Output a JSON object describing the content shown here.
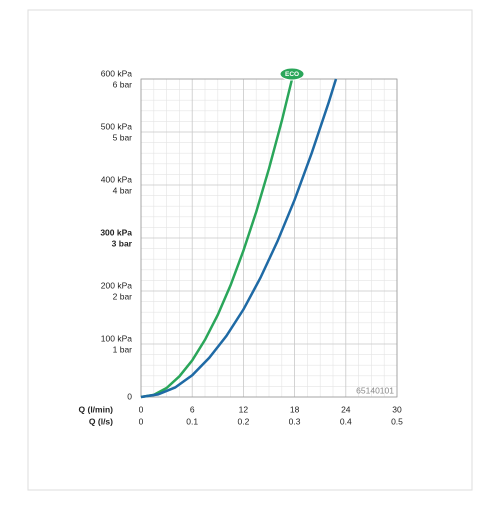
{
  "chart_data": {
    "type": "line",
    "xlabel": "Q (l/min)",
    "x2label": "Q (l/s)",
    "xlim": [
      0,
      30
    ],
    "xticks": [
      0,
      6,
      12,
      18,
      24,
      30
    ],
    "x2ticks": [
      {
        "value": 0,
        "label": "0"
      },
      {
        "value": 6,
        "label": "0.1"
      },
      {
        "value": 12,
        "label": "0.2"
      },
      {
        "value": 18,
        "label": "0.3"
      },
      {
        "value": 24,
        "label": "0.4"
      },
      {
        "value": 30,
        "label": "0.5"
      }
    ],
    "ylim": [
      0,
      600
    ],
    "yticks": [
      0,
      {
        "value": 100,
        "label": "100 kPa"
      },
      {
        "value": 200,
        "label": "200 kPa"
      },
      {
        "value": 300,
        "label": "300 kPa"
      },
      {
        "value": 400,
        "label": "400 kPa"
      },
      {
        "value": 500,
        "label": "500 kPa"
      },
      {
        "value": 600,
        "label": "600 kPa"
      }
    ],
    "ybarticks": [
      {
        "value": 100,
        "label": "1 bar"
      },
      {
        "value": 200,
        "label": "2 bar"
      },
      {
        "value": 300,
        "label": "3 bar"
      },
      {
        "value": 400,
        "label": "4 bar"
      },
      {
        "value": 500,
        "label": "5 bar"
      },
      {
        "value": 600,
        "label": "6 bar"
      }
    ],
    "bold_ytick": 300,
    "grid": true,
    "badge": "ECO",
    "code": "65140101",
    "series": [
      {
        "color": "#2aa65a",
        "badge": true,
        "x": [
          0,
          1.5,
          3,
          4.5,
          6,
          7.5,
          9,
          10.5,
          12,
          13.5,
          15,
          16.5,
          17.7
        ],
        "values": [
          0,
          4,
          17,
          39,
          69,
          108,
          155,
          211,
          276,
          349,
          431,
          521,
          600
        ]
      },
      {
        "color": "#1f6aa5",
        "x": [
          0,
          2,
          4,
          6,
          8,
          10,
          12,
          14,
          16,
          18,
          20,
          22,
          22.85
        ],
        "values": [
          0,
          5,
          18,
          41,
          74,
          115,
          165,
          225,
          294,
          372,
          460,
          556,
          600
        ]
      }
    ]
  }
}
